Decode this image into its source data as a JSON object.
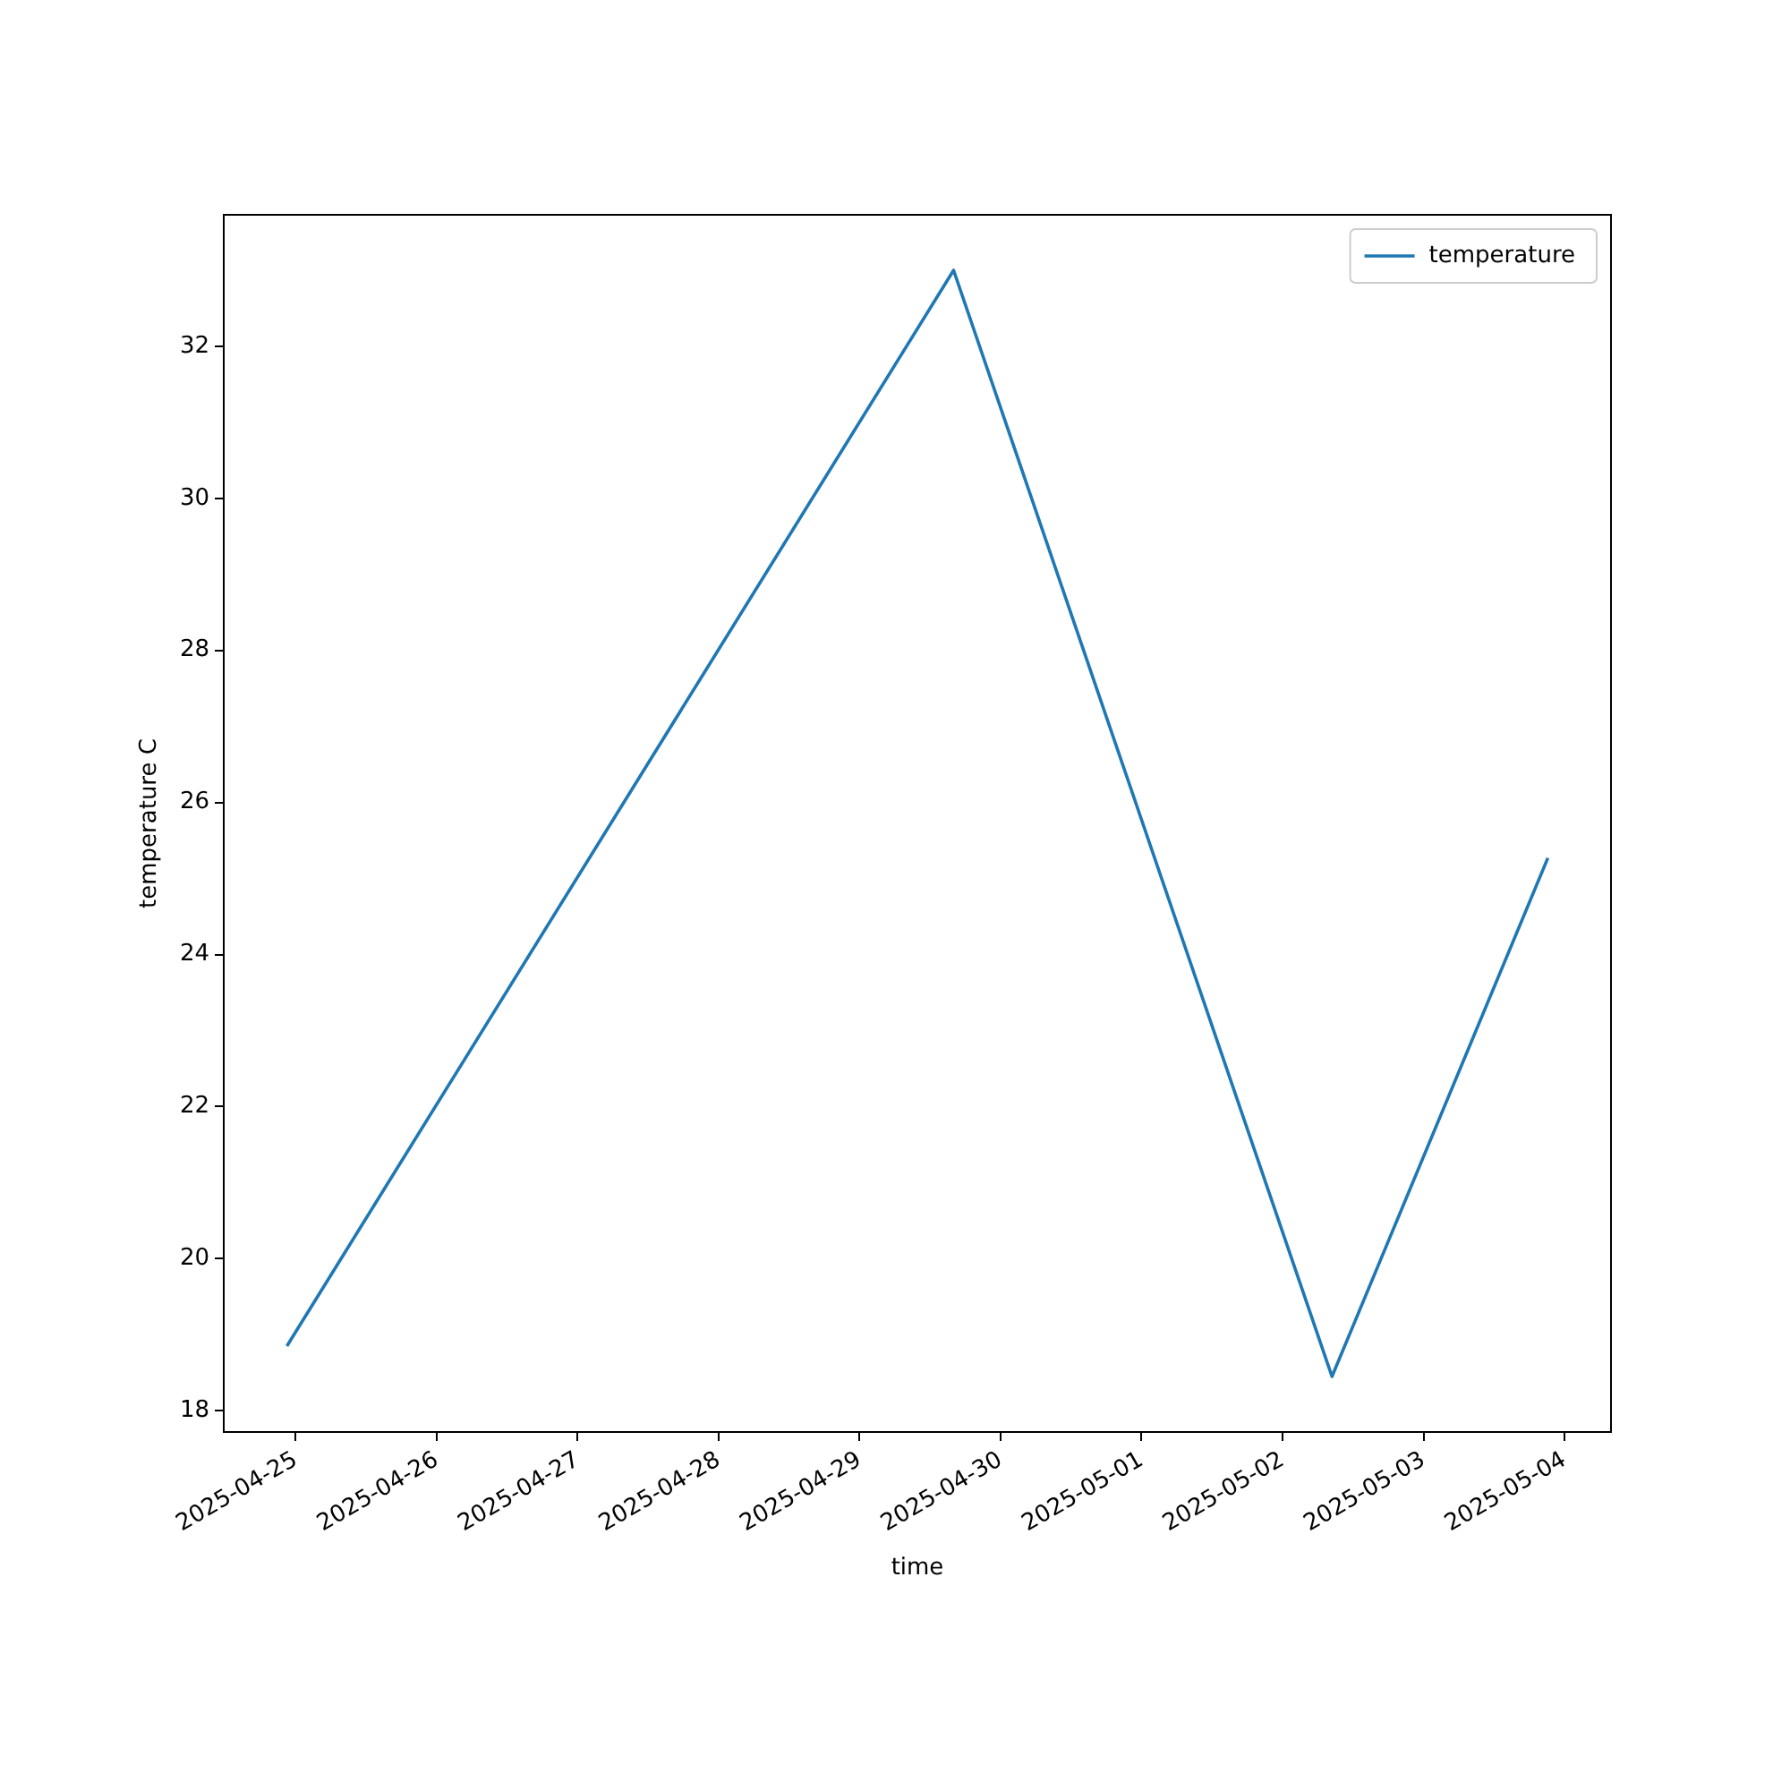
{
  "chart_data": {
    "type": "line",
    "xlabel": "time",
    "ylabel": "temperature C",
    "x": [
      "2025-04-24T22:30",
      "2025-04-29T16:00",
      "2025-05-02T08:25",
      "2025-05-03T21:10"
    ],
    "series": [
      {
        "name": "temperature",
        "color": "#1f77b4",
        "values": [
          18.85,
          33.0,
          18.45,
          25.27
        ]
      }
    ],
    "xlim": [
      "2025-04-24T11:45",
      "2025-05-04T07:55"
    ],
    "xticks": [
      "2025-04-25",
      "2025-04-26",
      "2025-04-27",
      "2025-04-28",
      "2025-04-29",
      "2025-04-30",
      "2025-05-01",
      "2025-05-02",
      "2025-05-03",
      "2025-05-04"
    ],
    "ylim": [
      17.72,
      33.73
    ],
    "yticks": [
      18,
      20,
      22,
      24,
      26,
      28,
      30,
      32
    ],
    "grid": false,
    "legend": "top right",
    "marker": "none",
    "line_style": "solid"
  }
}
